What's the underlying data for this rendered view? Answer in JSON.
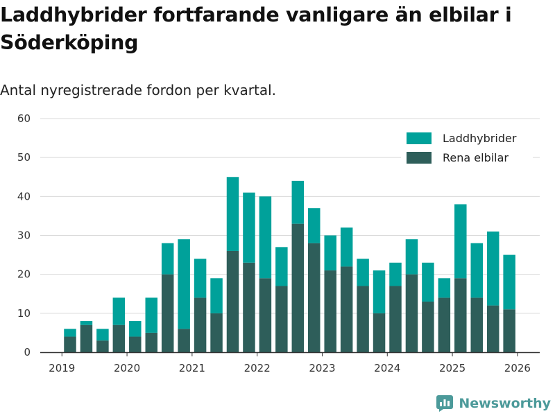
{
  "brand": {
    "name": "Newsworthy",
    "color": "#4c9a9a"
  },
  "chart_data": {
    "type": "bar",
    "stacked": true,
    "title": "Laddhybrider fortfarande vanligare än elbilar i Söderköping",
    "subtitle": "Antal nyregistrerade fordon per kvartal.",
    "ylim": [
      0,
      60
    ],
    "yticks": [
      0,
      10,
      20,
      30,
      40,
      50,
      60
    ],
    "grid": true,
    "legend_position": "top-right",
    "year_ticks": [
      {
        "label": "2019",
        "quarter_index": -0.5
      },
      {
        "label": "2020",
        "quarter_index": 3.5
      },
      {
        "label": "2021",
        "quarter_index": 7.5
      },
      {
        "label": "2022",
        "quarter_index": 11.5
      },
      {
        "label": "2023",
        "quarter_index": 15.5
      },
      {
        "label": "2024",
        "quarter_index": 19.5
      },
      {
        "label": "2025",
        "quarter_index": 23.5
      },
      {
        "label": "2026",
        "quarter_index": 27.5
      }
    ],
    "categories": [
      "2019 Q2",
      "2019 Q3",
      "2019 Q4",
      "2020 Q1",
      "2020 Q2",
      "2020 Q3",
      "2020 Q4",
      "2021 Q1",
      "2021 Q2",
      "2021 Q3",
      "2021 Q4",
      "2022 Q1",
      "2022 Q2",
      "2022 Q3",
      "2022 Q4",
      "2023 Q1",
      "2023 Q2",
      "2023 Q3",
      "2023 Q4",
      "2024 Q1",
      "2024 Q2",
      "2024 Q3",
      "2024 Q4",
      "2025 Q1",
      "2025 Q2",
      "2025 Q3",
      "2025 Q4",
      "2026 Q1"
    ],
    "series": [
      {
        "name": "Rena elbilar",
        "color": "#2e5e5a",
        "values": [
          4,
          7,
          3,
          7,
          4,
          5,
          20,
          6,
          14,
          10,
          26,
          23,
          19,
          17,
          33,
          28,
          21,
          22,
          17,
          10,
          17,
          20,
          13,
          14,
          19,
          14,
          12,
          11
        ]
      },
      {
        "name": "Laddhybrider",
        "color": "#00a19a",
        "values": [
          2,
          1,
          3,
          7,
          4,
          9,
          8,
          23,
          10,
          9,
          19,
          18,
          21,
          10,
          11,
          9,
          9,
          10,
          7,
          11,
          6,
          9,
          10,
          5,
          19,
          14,
          19,
          14
        ]
      }
    ],
    "legend_order": [
      "Laddhybrider",
      "Rena elbilar"
    ]
  }
}
